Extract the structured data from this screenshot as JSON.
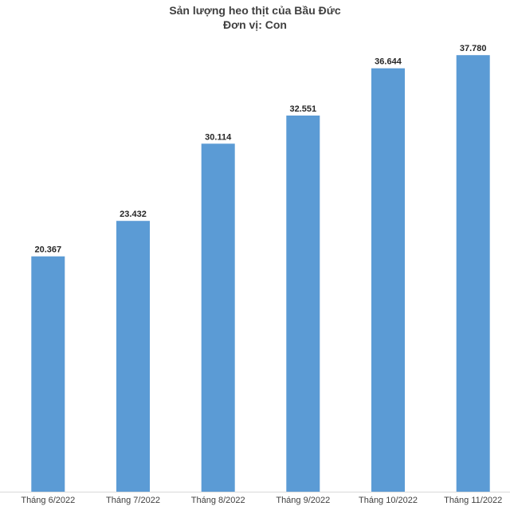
{
  "chart_data": {
    "type": "bar",
    "title": "Sản lượng heo thịt của Bầu Đức",
    "subtitle": "Đơn vị: Con",
    "categories": [
      "Tháng 6/2022",
      "Tháng 7/2022",
      "Tháng 8/2022",
      "Tháng 9/2022",
      "Tháng 10/2022",
      "Tháng 11/2022"
    ],
    "values": [
      20367,
      23432,
      30114,
      32551,
      36644,
      37780
    ],
    "value_labels": [
      "20.367",
      "23.432",
      "30.114",
      "32.551",
      "36.644",
      "37.780"
    ],
    "xlabel": "",
    "ylabel": "",
    "ylim": [
      0,
      40000
    ],
    "grid": false,
    "legend": "none",
    "bar_color": "#5B9BD5"
  }
}
